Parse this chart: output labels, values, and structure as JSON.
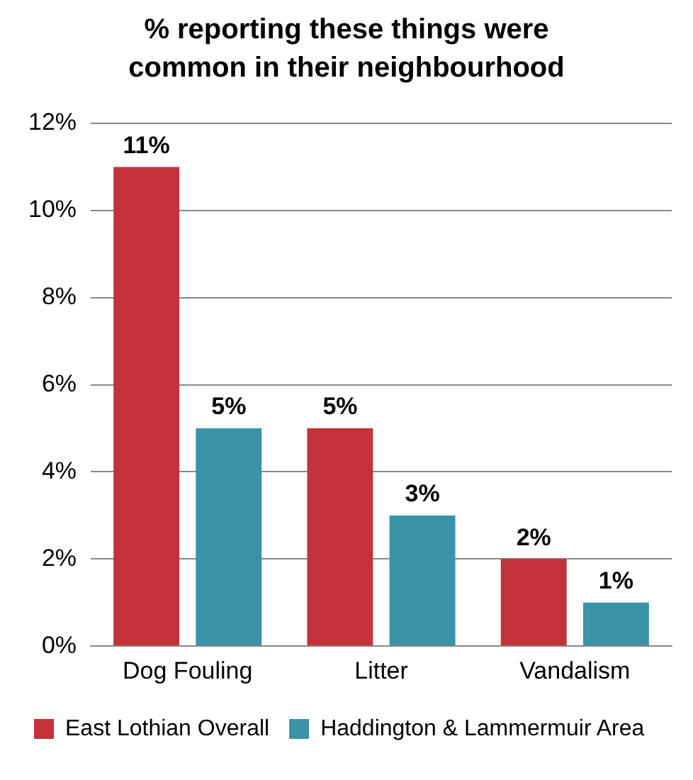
{
  "chart_data": {
    "type": "bar",
    "title": "% reporting these things were common in their neighbourhood",
    "categories": [
      "Dog Fouling",
      "Litter",
      "Vandalism"
    ],
    "series": [
      {
        "name": "East Lothian Overall",
        "color": "#c3323a",
        "values": [
          11,
          5,
          2
        ],
        "value_labels": [
          "11%",
          "5%",
          "2%"
        ]
      },
      {
        "name": "Haddington & Lammermuir Area",
        "color": "#3a93a9",
        "values": [
          5,
          3,
          1
        ],
        "value_labels": [
          "5%",
          "3%",
          "1%"
        ]
      }
    ],
    "ylim": [
      0,
      12
    ],
    "yticks": [
      {
        "value": 0,
        "label": "0%"
      },
      {
        "value": 2,
        "label": "2%"
      },
      {
        "value": 4,
        "label": "4%"
      },
      {
        "value": 6,
        "label": "6%"
      },
      {
        "value": 8,
        "label": "8%"
      },
      {
        "value": 10,
        "label": "10%"
      },
      {
        "value": 12,
        "label": "12%"
      }
    ],
    "grid": "y",
    "legend": "bottom"
  }
}
